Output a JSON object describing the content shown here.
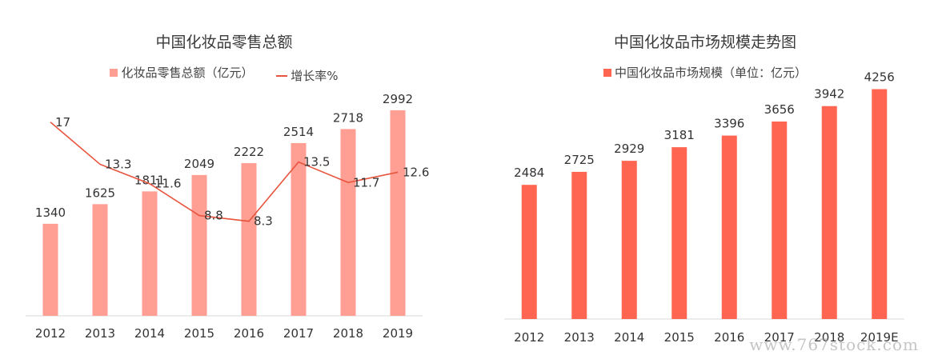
{
  "chart_data": [
    {
      "type": "bar",
      "title": "中国化妆品零售总额",
      "categories": [
        "2012",
        "2013",
        "2014",
        "2015",
        "2016",
        "2017",
        "2018",
        "2019"
      ],
      "series": [
        {
          "name": "化妆品零售总额（亿元）",
          "type": "bar",
          "values": [
            1340,
            1625,
            1811,
            2049,
            2222,
            2514,
            2718,
            2992
          ],
          "labels": [
            "1340",
            "1625",
            "1811",
            "2049",
            "2222",
            "2514",
            "2718",
            "2992"
          ]
        },
        {
          "name": "增长率%",
          "type": "line",
          "values": [
            17,
            13.3,
            11.6,
            8.8,
            8.3,
            13.5,
            11.7,
            12.6
          ],
          "labels": [
            "17",
            "13.3",
            "11.6",
            "8.8",
            "8.3",
            "13.5",
            "11.7",
            "12.6"
          ]
        }
      ],
      "ylim": [
        0,
        3200
      ],
      "ylim_secondary": [
        0,
        20
      ],
      "legend": "top-center",
      "grid": false
    },
    {
      "type": "bar",
      "title": "中国化妆品市场规模走势图",
      "categories": [
        "2012",
        "2013",
        "2014",
        "2015",
        "2016",
        "2017",
        "2018",
        "2019E"
      ],
      "series": [
        {
          "name": "中国化妆品市场规模（单位：亿元）",
          "values": [
            2484,
            2725,
            2929,
            3181,
            3396,
            3656,
            3942,
            4256
          ],
          "labels": [
            "2484",
            "2725",
            "2929",
            "3181",
            "3396",
            "3656",
            "3942",
            "4256"
          ]
        }
      ],
      "ylim": [
        0,
        4500
      ],
      "legend": "top-center",
      "grid": false
    }
  ],
  "colors": {
    "left_bar": "#FF9E93",
    "left_line": "#E8553F",
    "right_bar": "#FF6551",
    "axis": "#d9d9d9",
    "text": "#333333"
  },
  "watermark": "www.767stock.com"
}
